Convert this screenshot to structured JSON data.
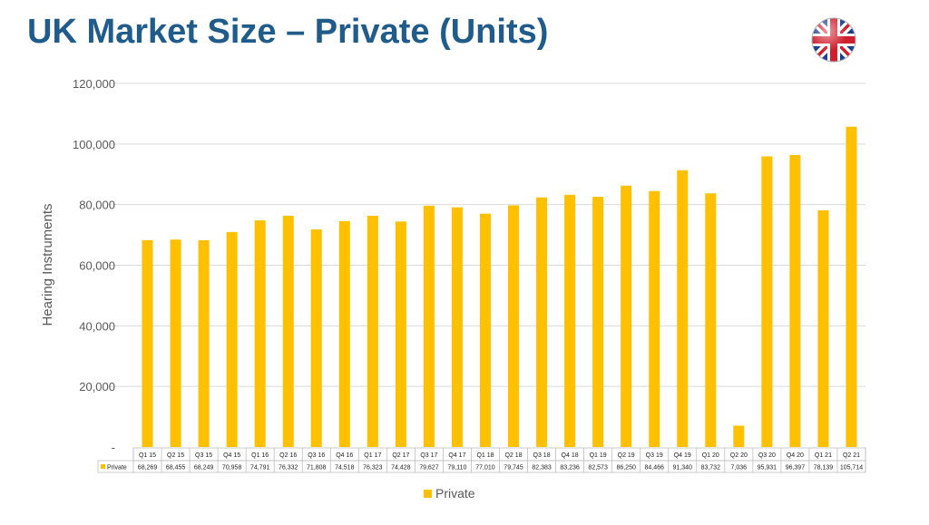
{
  "page": {
    "title": "UK Market Size – Private (Units)",
    "flag_icon": "uk-flag-icon"
  },
  "chart_data": {
    "type": "bar",
    "ylabel": "Hearing Instruments",
    "ylim": [
      0,
      120000
    ],
    "yticks": [
      0,
      20000,
      40000,
      60000,
      80000,
      100000,
      120000
    ],
    "ytick_labels": [
      "-",
      "20,000",
      "40,000",
      "60,000",
      "80,000",
      "100,000",
      "120,000"
    ],
    "grid": true,
    "legend_position": "bottom",
    "color": "#FFC000",
    "categories": [
      "Q1 15",
      "Q2 15",
      "Q3 15",
      "Q4 15",
      "Q1 16",
      "Q2 16",
      "Q3 16",
      "Q4 16",
      "Q1 17",
      "Q2 17",
      "Q3 17",
      "Q4 17",
      "Q1 18",
      "Q2 18",
      "Q3 18",
      "Q4 18",
      "Q1 19",
      "Q2 19",
      "Q3 19",
      "Q4 19",
      "Q1 20",
      "Q2 20",
      "Q3 20",
      "Q4 20",
      "Q1 21",
      "Q2 21"
    ],
    "series": [
      {
        "name": "Private",
        "values": [
          68269,
          68455,
          68249,
          70958,
          74791,
          76332,
          71808,
          74518,
          76323,
          74428,
          79627,
          79110,
          77010,
          79745,
          82383,
          83236,
          82573,
          86250,
          84466,
          91340,
          83732,
          7036,
          95931,
          96397,
          78139,
          105714
        ],
        "value_labels": [
          "68,269",
          "68,455",
          "68,249",
          "70,958",
          "74,791",
          "76,332",
          "71,808",
          "74,518",
          "76,323",
          "74,428",
          "79,627",
          "79,110",
          "77,010",
          "79,745",
          "82,383",
          "83,236",
          "82,573",
          "86,250",
          "84,466",
          "91,340",
          "83,732",
          "7,036",
          "95,931",
          "96,397",
          "78,139",
          "105,714"
        ]
      }
    ]
  }
}
